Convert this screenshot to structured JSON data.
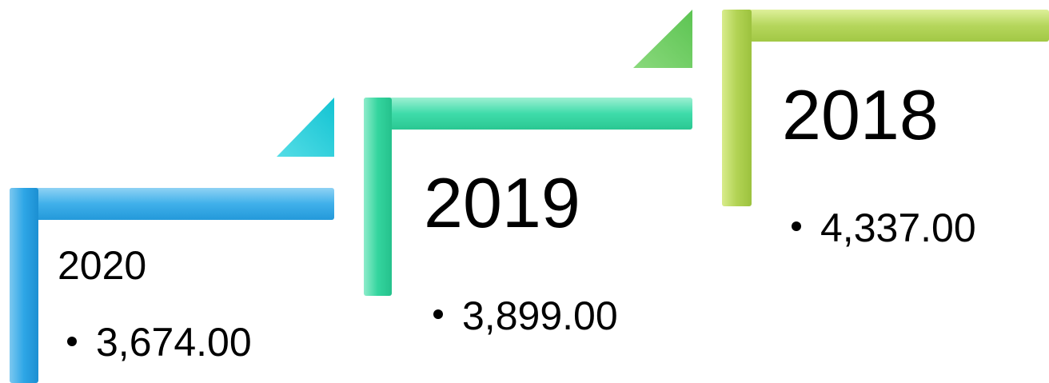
{
  "steps": [
    {
      "label": "2020",
      "value": "3,674.00"
    },
    {
      "label": "2019",
      "value": "3,899.00"
    },
    {
      "label": "2018",
      "value": "4,337.00"
    }
  ]
}
